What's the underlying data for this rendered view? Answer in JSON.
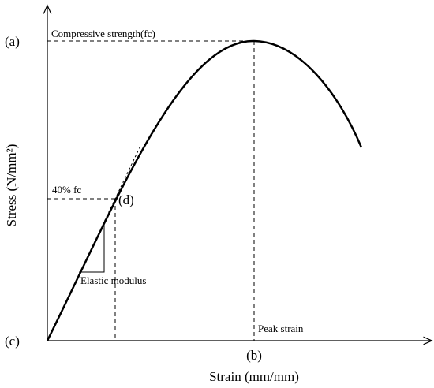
{
  "diagram": {
    "axes": {
      "x_label": "Strain (mm/mm)",
      "y_label": "Stress (N/mm²)"
    },
    "points": {
      "a": "(a)",
      "b": "(b)",
      "c": "(c)",
      "d": "(d)"
    },
    "annotations": {
      "compressive_strength": "Compressive strength(fc)",
      "forty_percent": "40% fc",
      "elastic_modulus": "Elastic modulus",
      "peak_strain": "Peak strain"
    }
  }
}
